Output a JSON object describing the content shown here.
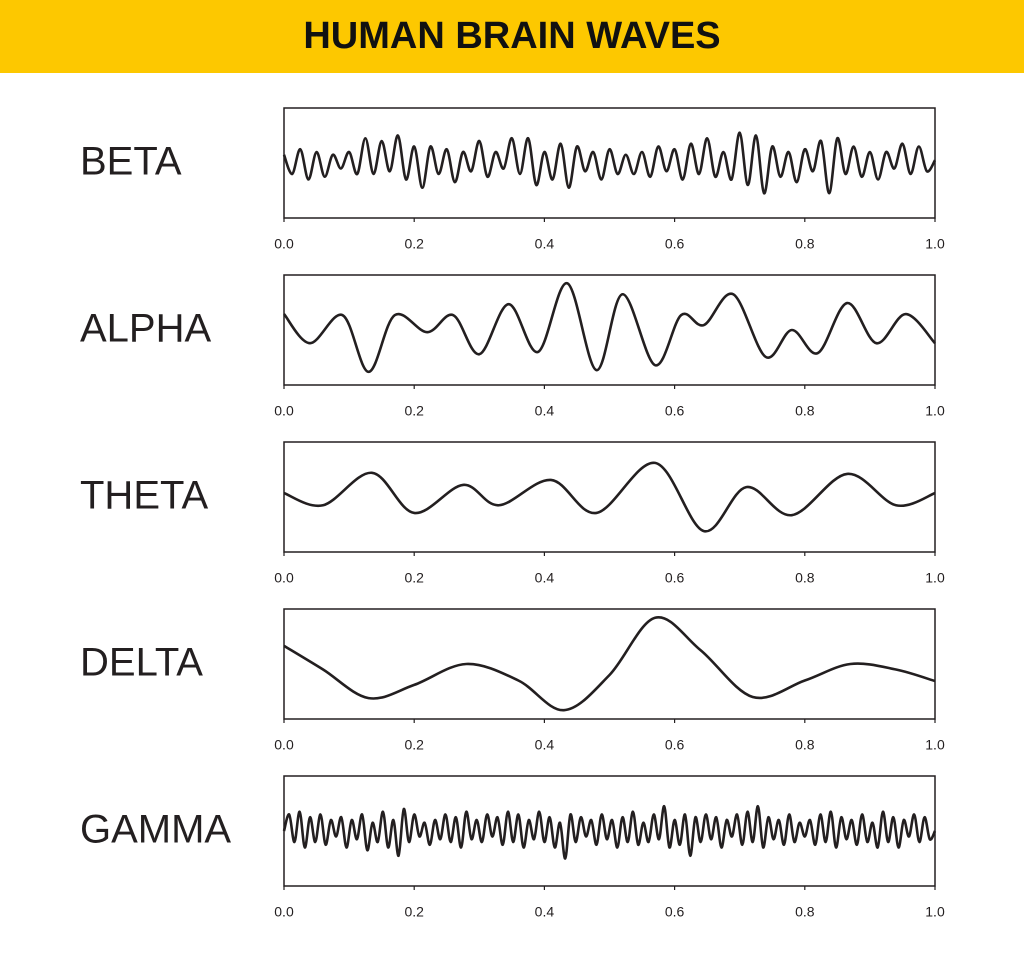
{
  "header": {
    "title": "HUMAN BRAIN WAVES"
  },
  "chart_data": [
    {
      "type": "line",
      "title": "BETA",
      "color": "#231f20",
      "xlim": [
        0,
        1
      ],
      "xticks": [
        {
          "value": 0,
          "label": "0.0"
        },
        0.2,
        0.4,
        0.6,
        0.8,
        {
          "value": 1,
          "label": "1.0"
        }
      ],
      "x": [
        0,
        0.0125,
        0.025,
        0.0375,
        0.05,
        0.0625,
        0.075,
        0.0875,
        0.1,
        0.1125,
        0.125,
        0.1375,
        0.15,
        0.1625,
        0.175,
        0.1875,
        0.2,
        0.2125,
        0.225,
        0.2375,
        0.25,
        0.2625,
        0.275,
        0.2875,
        0.3,
        0.3125,
        0.325,
        0.3375,
        0.35,
        0.3625,
        0.375,
        0.3875,
        0.4,
        0.4125,
        0.425,
        0.4375,
        0.45,
        0.4625,
        0.475,
        0.4875,
        0.5,
        0.5125,
        0.525,
        0.5375,
        0.55,
        0.5625,
        0.575,
        0.5875,
        0.6,
        0.6125,
        0.625,
        0.6375,
        0.65,
        0.6625,
        0.675,
        0.6875,
        0.7,
        0.7125,
        0.725,
        0.7375,
        0.75,
        0.7625,
        0.775,
        0.7875,
        0.8,
        0.8125,
        0.825,
        0.8375,
        0.85,
        0.8625,
        0.875,
        0.8875,
        0.9,
        0.9125,
        0.925,
        0.9375,
        0.95,
        0.9625,
        0.975,
        0.9875,
        1
      ],
      "values": [
        0.15,
        -0.2,
        0.25,
        -0.3,
        0.2,
        -0.25,
        0.15,
        -0.1,
        0.2,
        -0.2,
        0.45,
        -0.2,
        0.4,
        -0.15,
        0.5,
        -0.3,
        0.3,
        -0.45,
        0.3,
        -0.2,
        0.25,
        -0.35,
        0.2,
        -0.15,
        0.4,
        -0.25,
        0.2,
        -0.1,
        0.45,
        -0.2,
        0.45,
        -0.4,
        0.2,
        -0.3,
        0.35,
        -0.45,
        0.3,
        -0.15,
        0.2,
        -0.3,
        0.25,
        -0.2,
        0.15,
        -0.2,
        0.2,
        -0.25,
        0.3,
        -0.15,
        0.25,
        -0.3,
        0.35,
        -0.2,
        0.45,
        -0.25,
        0.2,
        -0.3,
        0.55,
        -0.4,
        0.5,
        -0.55,
        0.3,
        -0.25,
        0.2,
        -0.35,
        0.25,
        -0.15,
        0.4,
        -0.55,
        0.45,
        -0.2,
        0.3,
        -0.25,
        0.2,
        -0.3,
        0.2,
        -0.1,
        0.35,
        -0.2,
        0.3,
        -0.15,
        0.05
      ]
    },
    {
      "type": "line",
      "title": "ALPHA",
      "color": "#231f20",
      "xlim": [
        0,
        1
      ],
      "xticks": [
        {
          "value": 0,
          "label": "0.0"
        },
        0.2,
        0.4,
        0.6,
        0.8,
        {
          "value": 1,
          "label": "1.0"
        }
      ],
      "x": [
        0,
        0.04,
        0.09,
        0.13,
        0.17,
        0.22,
        0.26,
        0.3,
        0.345,
        0.39,
        0.435,
        0.48,
        0.52,
        0.57,
        0.61,
        0.645,
        0.69,
        0.74,
        0.78,
        0.82,
        0.865,
        0.91,
        0.955,
        1
      ],
      "values": [
        0.29,
        -0.24,
        0.27,
        -0.76,
        0.27,
        -0.04,
        0.27,
        -0.44,
        0.47,
        -0.4,
        0.85,
        -0.73,
        0.65,
        -0.64,
        0.27,
        0.09,
        0.65,
        -0.49,
        0,
        -0.42,
        0.49,
        -0.24,
        0.29,
        -0.24
      ]
    },
    {
      "type": "line",
      "title": "THETA",
      "color": "#231f20",
      "xlim": [
        0,
        1
      ],
      "xticks": [
        {
          "value": 0,
          "label": "0.0"
        },
        0.2,
        0.4,
        0.6,
        0.8,
        {
          "value": 1,
          "label": "1.0"
        }
      ],
      "x": [
        0,
        0.06,
        0.135,
        0.2,
        0.275,
        0.33,
        0.41,
        0.48,
        0.57,
        0.645,
        0.71,
        0.78,
        0.865,
        0.94,
        1
      ],
      "values": [
        0.07,
        -0.15,
        0.44,
        -0.29,
        0.22,
        -0.15,
        0.31,
        -0.29,
        0.62,
        -0.62,
        0.18,
        -0.33,
        0.42,
        -0.15,
        0.07
      ]
    },
    {
      "type": "line",
      "title": "DELTA",
      "color": "#231f20",
      "xlim": [
        0,
        1
      ],
      "xticks": [
        {
          "value": 0,
          "label": "0.0"
        },
        0.2,
        0.4,
        0.6,
        0.8,
        {
          "value": 1,
          "label": "1.0"
        }
      ],
      "x": [
        0,
        0.06,
        0.13,
        0.2,
        0.28,
        0.36,
        0.43,
        0.5,
        0.57,
        0.64,
        0.72,
        0.8,
        0.87,
        0.94,
        1
      ],
      "values": [
        0.33,
        -0.1,
        -0.62,
        -0.38,
        0,
        -0.3,
        -0.84,
        -0.2,
        0.84,
        0.25,
        -0.6,
        -0.3,
        0,
        -0.1,
        -0.31
      ]
    },
    {
      "type": "line",
      "title": "GAMMA",
      "color": "#231f20",
      "xlim": [
        0,
        1
      ],
      "xticks": [
        {
          "value": 0,
          "label": "0.0"
        },
        0.2,
        0.4,
        0.6,
        0.8,
        {
          "value": 1,
          "label": "1.0"
        }
      ],
      "x": [
        0,
        0.008,
        0.016,
        0.024,
        0.032,
        0.04,
        0.048,
        0.056,
        0.064,
        0.072,
        0.08,
        0.088,
        0.096,
        0.104,
        0.112,
        0.12,
        0.128,
        0.136,
        0.144,
        0.152,
        0.16,
        0.168,
        0.176,
        0.184,
        0.192,
        0.2,
        0.208,
        0.216,
        0.224,
        0.232,
        0.24,
        0.248,
        0.256,
        0.264,
        0.272,
        0.28,
        0.288,
        0.296,
        0.304,
        0.312,
        0.32,
        0.328,
        0.336,
        0.344,
        0.352,
        0.36,
        0.368,
        0.376,
        0.384,
        0.392,
        0.4,
        0.408,
        0.416,
        0.424,
        0.432,
        0.44,
        0.448,
        0.456,
        0.464,
        0.472,
        0.48,
        0.488,
        0.496,
        0.504,
        0.512,
        0.52,
        0.528,
        0.536,
        0.544,
        0.552,
        0.56,
        0.568,
        0.576,
        0.584,
        0.592,
        0.6,
        0.608,
        0.616,
        0.624,
        0.632,
        0.64,
        0.648,
        0.656,
        0.664,
        0.672,
        0.68,
        0.688,
        0.696,
        0.704,
        0.712,
        0.72,
        0.728,
        0.736,
        0.744,
        0.752,
        0.76,
        0.768,
        0.776,
        0.784,
        0.792,
        0.8,
        0.808,
        0.816,
        0.824,
        0.832,
        0.84,
        0.848,
        0.856,
        0.864,
        0.872,
        0.88,
        0.888,
        0.896,
        0.904,
        0.912,
        0.92,
        0.928,
        0.936,
        0.944,
        0.952,
        0.96,
        0.968,
        0.976,
        0.984,
        0.992,
        1
      ],
      "values": [
        0,
        0.3,
        -0.2,
        0.35,
        -0.3,
        0.25,
        -0.2,
        0.3,
        -0.25,
        0.2,
        -0.1,
        0.25,
        -0.3,
        0.2,
        -0.15,
        0.3,
        -0.35,
        0.15,
        -0.2,
        0.35,
        -0.3,
        0.2,
        -0.45,
        0.4,
        -0.2,
        0.3,
        -0.1,
        0.15,
        -0.25,
        0.2,
        -0.15,
        0.3,
        -0.2,
        0.25,
        -0.3,
        0.35,
        -0.15,
        0.2,
        -0.2,
        0.3,
        -0.1,
        0.25,
        -0.25,
        0.35,
        -0.2,
        0.3,
        -0.3,
        0.2,
        -0.15,
        0.35,
        -0.2,
        0.25,
        -0.3,
        0.15,
        -0.5,
        0.3,
        -0.2,
        0.25,
        -0.1,
        0.2,
        -0.25,
        0.3,
        -0.15,
        0.2,
        -0.3,
        0.25,
        -0.2,
        0.35,
        -0.25,
        0.15,
        -0.2,
        0.3,
        -0.15,
        0.45,
        -0.3,
        0.2,
        -0.25,
        0.3,
        -0.45,
        0.25,
        -0.2,
        0.3,
        -0.15,
        0.25,
        -0.3,
        0.2,
        -0.1,
        0.3,
        -0.25,
        0.35,
        -0.2,
        0.45,
        -0.3,
        0.25,
        -0.15,
        0.2,
        -0.25,
        0.3,
        -0.2,
        0.15,
        -0.1,
        0.2,
        -0.25,
        0.3,
        -0.2,
        0.35,
        -0.3,
        0.25,
        -0.15,
        0.2,
        -0.25,
        0.3,
        -0.2,
        0.15,
        -0.3,
        0.35,
        -0.2,
        0.25,
        -0.3,
        0.2,
        -0.1,
        0.3,
        -0.2,
        0.25,
        -0.15,
        0
      ]
    }
  ]
}
